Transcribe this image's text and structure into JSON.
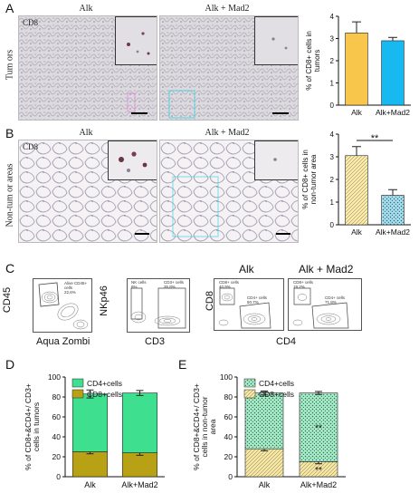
{
  "panels": {
    "A": "A",
    "B": "B",
    "C": "C",
    "D": "D",
    "E": "E"
  },
  "micro": {
    "col_alk": "Alk",
    "col_alk_mad2": "Alk + Mad2",
    "row_tumors": "Tum ors",
    "row_nontumor": "Non-tum or areas",
    "tag_cd8": "CD8"
  },
  "flow": {
    "plot1": {
      "gate": "Alive CD45+ cells",
      "value": "22,6%",
      "ylabel": "CD45",
      "xlabel": "Aqua Zombi"
    },
    "plot2": {
      "gate_left": "NK cells",
      "value_left": "6%",
      "gate_right": "CD3+ cells",
      "value_right": "35,8%",
      "ylabel": "NKp46",
      "xlabel": "CD3"
    },
    "plot3": {
      "title": "Alk",
      "cd8": "CD8+ cells",
      "cd8_val": "40,9%",
      "cd4": "CD4+ cells",
      "cd4_val": "50,7%"
    },
    "plot4": {
      "title": "Alk + Mad2",
      "cd8": "CD8+ cells",
      "cd8_val": "19,2%",
      "cd4": "CD4+ cells",
      "cd4_val": "71,8%"
    },
    "shared_ylabel": "CD8",
    "shared_xlabel": "CD4"
  },
  "chart_data": [
    {
      "id": "A-bar",
      "type": "bar",
      "categories": [
        "Alk",
        "Alk+Mad2"
      ],
      "values": [
        3.25,
        2.9
      ],
      "errors": [
        0.5,
        0.15
      ],
      "ylabel": "% of CD8+ cells in tumors",
      "ylim": [
        0,
        4
      ],
      "yticks": [
        "0",
        "1",
        "2",
        "3",
        "4"
      ],
      "colors": [
        "#f7c64b",
        "#18b8f0"
      ]
    },
    {
      "id": "B-bar",
      "type": "bar",
      "categories": [
        "Alk",
        "Alk+Mad2"
      ],
      "values": [
        3.05,
        1.3
      ],
      "errors": [
        0.4,
        0.25
      ],
      "ylabel": "% of CD8+ cells in non-tumor area",
      "ylim": [
        0,
        4
      ],
      "yticks": [
        "0",
        "1",
        "2",
        "3",
        "4"
      ],
      "significance": "**",
      "colors": [
        "#fbe9a6",
        "#9fe3f7"
      ]
    },
    {
      "id": "D-bar",
      "type": "bar",
      "stacked": true,
      "categories": [
        "Alk",
        "Alk+Mad2"
      ],
      "series": [
        {
          "name": "CD8+cells",
          "values": [
            25,
            24
          ],
          "errors": [
            2,
            2.5
          ]
        },
        {
          "name": "CD4+cells",
          "values": [
            58,
            60
          ],
          "errors": [
            4,
            2.5
          ]
        }
      ],
      "ylabel": "% of CD8+&CD4+/ CD3+ cells in tumors",
      "ylim": [
        0,
        100
      ],
      "yticks": [
        "0",
        "20",
        "40",
        "60",
        "80",
        "100"
      ],
      "colors": {
        "CD4+cells": "#3ee08f",
        "CD8+cells": "#b8a114"
      }
    },
    {
      "id": "E-bar",
      "type": "bar",
      "stacked": true,
      "categories": [
        "Alk",
        "Alk+Mad2"
      ],
      "series": [
        {
          "name": "CD8+cells",
          "values": [
            28,
            15
          ],
          "errors": [
            2,
            2
          ]
        },
        {
          "name": "CD4+cells",
          "values": [
            56,
            69
          ],
          "errors": [
            2,
            1.5
          ]
        }
      ],
      "ylabel": "% of CD8+&CD4+/ CD3+ cells in non-tumor area",
      "ylim": [
        0,
        100
      ],
      "yticks": [
        "0",
        "20",
        "40",
        "60",
        "80",
        "100"
      ],
      "significance": "**",
      "colors": {
        "CD4+cells": "#9ff2c8",
        "CD8+cells": "#f6e6a0"
      }
    }
  ]
}
